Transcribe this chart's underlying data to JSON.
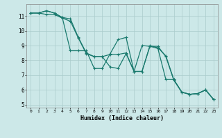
{
  "xlabel": "Humidex (Indice chaleur)",
  "background_color": "#cce8e8",
  "grid_color": "#aacccc",
  "line_color": "#1a7a6e",
  "xlim": [
    -0.5,
    23.5
  ],
  "ylim": [
    4.8,
    11.8
  ],
  "yticks": [
    5,
    6,
    7,
    8,
    9,
    10,
    11
  ],
  "xticks": [
    0,
    1,
    2,
    3,
    4,
    5,
    6,
    7,
    8,
    9,
    10,
    11,
    12,
    13,
    14,
    15,
    16,
    17,
    18,
    19,
    20,
    21,
    22,
    23
  ],
  "series": [
    [
      11.2,
      11.2,
      11.35,
      11.2,
      10.9,
      10.8,
      9.55,
      8.5,
      8.25,
      8.25,
      8.4,
      8.4,
      8.5,
      7.25,
      7.25,
      9.0,
      8.85,
      8.3,
      6.7,
      5.85,
      5.7,
      5.75,
      6.0,
      5.35
    ],
    [
      11.2,
      11.2,
      11.1,
      11.1,
      10.85,
      8.65,
      8.65,
      8.65,
      7.45,
      7.45,
      8.45,
      9.4,
      9.55,
      7.25,
      9.0,
      8.95,
      8.8,
      6.7,
      6.7,
      5.85,
      5.7,
      5.75,
      6.0,
      5.35
    ],
    [
      11.2,
      11.2,
      11.35,
      11.2,
      10.85,
      10.65,
      9.5,
      8.45,
      8.25,
      8.25,
      7.55,
      7.45,
      8.45,
      7.25,
      7.25,
      8.95,
      8.95,
      8.25,
      6.65,
      5.85,
      5.7,
      5.75,
      6.0,
      5.35
    ]
  ]
}
